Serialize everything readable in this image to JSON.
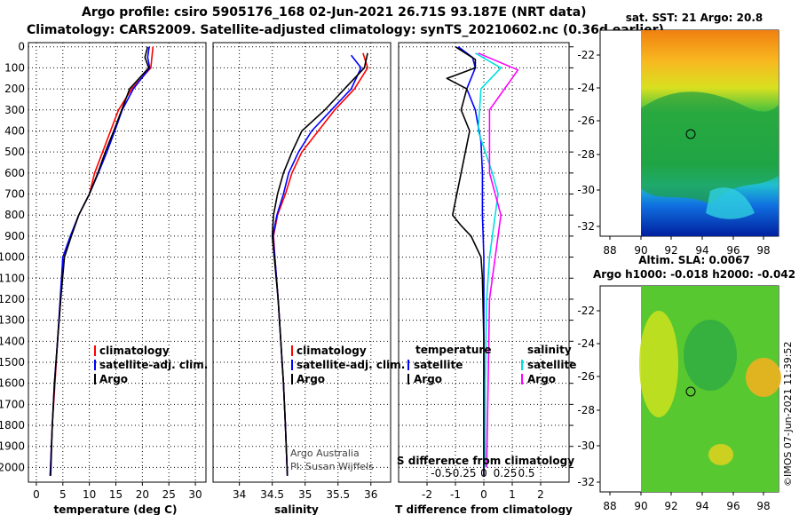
{
  "titles": {
    "line1": "Argo profile: csiro 5905176_168 02-Jun-2021 26.71S 93.187E (NRT data)",
    "line2": "Climatology: CARS2009. Satellite-adjusted climatology: synTS_20210602.nc (0.36d earlier)"
  },
  "colors": {
    "climatology": "#ff0000",
    "satellite": "#0000ff",
    "argo": "#000000",
    "sat_salinity": "#00e0e0",
    "argo_salinity": "#ff00ff"
  },
  "depth_axis": {
    "ticks": [
      0,
      100,
      200,
      300,
      400,
      500,
      600,
      700,
      800,
      900,
      1000,
      1100,
      1200,
      1300,
      1400,
      1500,
      1600,
      1700,
      1800,
      1900,
      2000
    ],
    "range": [
      -20,
      2070
    ]
  },
  "chart_data": [
    {
      "type": "line",
      "name": "temperature-profile",
      "xlabel": "temperature (deg C)",
      "xlim": [
        -1.5,
        32
      ],
      "xticks": [
        0,
        5,
        10,
        15,
        20,
        25,
        30
      ],
      "legend": [
        "climatology",
        "satellite-adj. clim.",
        "Argo"
      ],
      "series": [
        {
          "name": "climatology",
          "color": "#ff0000",
          "points": [
            [
              22,
              0
            ],
            [
              21.8,
              50
            ],
            [
              21.6,
              100
            ],
            [
              18,
              200
            ],
            [
              15.5,
              300
            ],
            [
              14,
              400
            ],
            [
              12.5,
              500
            ],
            [
              11,
              600
            ],
            [
              10,
              700
            ],
            [
              8,
              800
            ],
            [
              6.5,
              900
            ],
            [
              5,
              1000
            ],
            [
              4.6,
              1200
            ],
            [
              4,
              1400
            ],
            [
              3.5,
              1600
            ],
            [
              3,
              1800
            ],
            [
              2.6,
              2040
            ]
          ]
        },
        {
          "name": "satellite-adj. clim.",
          "color": "#0000ff",
          "points": [
            [
              21.3,
              0
            ],
            [
              21,
              50
            ],
            [
              21.4,
              100
            ],
            [
              18.3,
              200
            ],
            [
              16.2,
              300
            ],
            [
              14.8,
              400
            ],
            [
              13.3,
              500
            ],
            [
              11.7,
              600
            ],
            [
              10,
              700
            ],
            [
              8,
              800
            ],
            [
              6.4,
              900
            ],
            [
              5,
              1000
            ],
            [
              4.5,
              1200
            ],
            [
              4,
              1400
            ],
            [
              3.4,
              1600
            ],
            [
              3,
              1800
            ],
            [
              2.6,
              2040
            ]
          ]
        },
        {
          "name": "Argo",
          "color": "#000000",
          "points": [
            [
              21,
              0
            ],
            [
              20.5,
              50
            ],
            [
              21.2,
              100
            ],
            [
              17.6,
              200
            ],
            [
              16.1,
              300
            ],
            [
              14.6,
              400
            ],
            [
              13,
              500
            ],
            [
              11.6,
              600
            ],
            [
              10,
              700
            ],
            [
              8,
              800
            ],
            [
              6.6,
              900
            ],
            [
              5.3,
              1000
            ],
            [
              4.6,
              1200
            ],
            [
              4,
              1400
            ],
            [
              3.4,
              1600
            ],
            [
              3,
              1800
            ],
            [
              2.7,
              2040
            ]
          ]
        }
      ]
    },
    {
      "type": "line",
      "name": "salinity-profile",
      "xlabel": "salinity",
      "xlim": [
        33.6,
        36.3
      ],
      "xticks": [
        34,
        34.5,
        35,
        35.5,
        36
      ],
      "xtick_labels": [
        "34",
        "34.5",
        "35",
        "35.5",
        "36"
      ],
      "legend": [
        "climatology",
        "satellite-adj. clim.",
        "Argo"
      ],
      "annotation": [
        "Argo Australia",
        "PI: Susan Wijffels"
      ],
      "series": [
        {
          "name": "climatology",
          "color": "#ff0000",
          "points": [
            [
              35.88,
              30
            ],
            [
              35.95,
              100
            ],
            [
              35.75,
              200
            ],
            [
              35.45,
              300
            ],
            [
              35.2,
              400
            ],
            [
              34.95,
              500
            ],
            [
              34.8,
              600
            ],
            [
              34.7,
              700
            ],
            [
              34.58,
              800
            ],
            [
              34.52,
              900
            ],
            [
              34.54,
              1000
            ],
            [
              34.59,
              1200
            ],
            [
              34.63,
              1400
            ],
            [
              34.67,
              1600
            ],
            [
              34.7,
              1800
            ],
            [
              34.73,
              2040
            ]
          ]
        },
        {
          "name": "satellite-adj. clim.",
          "color": "#0000ff",
          "points": [
            [
              35.7,
              40
            ],
            [
              35.85,
              100
            ],
            [
              35.7,
              200
            ],
            [
              35.4,
              300
            ],
            [
              35.1,
              400
            ],
            [
              34.9,
              500
            ],
            [
              34.75,
              600
            ],
            [
              34.67,
              700
            ],
            [
              34.57,
              800
            ],
            [
              34.51,
              900
            ],
            [
              34.54,
              1000
            ],
            [
              34.59,
              1200
            ],
            [
              34.63,
              1400
            ],
            [
              34.67,
              1600
            ],
            [
              34.7,
              1800
            ],
            [
              34.73,
              2040
            ]
          ]
        },
        {
          "name": "Argo",
          "color": "#000000",
          "points": [
            [
              35.95,
              30
            ],
            [
              35.9,
              100
            ],
            [
              35.6,
              200
            ],
            [
              35.3,
              300
            ],
            [
              34.95,
              400
            ],
            [
              34.8,
              500
            ],
            [
              34.67,
              600
            ],
            [
              34.58,
              700
            ],
            [
              34.52,
              800
            ],
            [
              34.5,
              900
            ],
            [
              34.53,
              1000
            ],
            [
              34.59,
              1200
            ],
            [
              34.63,
              1400
            ],
            [
              34.67,
              1600
            ],
            [
              34.7,
              1800
            ],
            [
              34.73,
              2040
            ]
          ]
        }
      ]
    },
    {
      "type": "line",
      "name": "difference-profile",
      "xlabel": "T difference from climatology",
      "x2label": "S difference from climatology",
      "xlim": [
        -3,
        3
      ],
      "xticks": [
        -2,
        -1,
        0,
        1,
        2
      ],
      "x2ticks": [
        "-0.5",
        "-0.25",
        "0",
        "0.25",
        "0.5"
      ],
      "legend_left_title": "temperature",
      "legend_right_title": "salinity",
      "legend": [
        "satellite",
        "Argo",
        "satellite",
        "Argo"
      ],
      "series": [
        {
          "name": "T satellite",
          "color": "#0000ff",
          "points": [
            [
              -0.9,
              0
            ],
            [
              -0.4,
              50
            ],
            [
              -0.3,
              100
            ],
            [
              -0.6,
              200
            ],
            [
              -0.3,
              300
            ],
            [
              -0.1,
              450
            ],
            [
              -0.05,
              600
            ],
            [
              -0.05,
              800
            ],
            [
              0,
              1000
            ],
            [
              0,
              1400
            ],
            [
              0,
              2040
            ]
          ]
        },
        {
          "name": "T Argo",
          "color": "#000000",
          "points": [
            [
              -1,
              0
            ],
            [
              -0.3,
              60
            ],
            [
              -0.3,
              100
            ],
            [
              -1.3,
              150
            ],
            [
              -0.6,
              200
            ],
            [
              -0.8,
              300
            ],
            [
              -0.5,
              400
            ],
            [
              -0.8,
              600
            ],
            [
              -1.1,
              800
            ],
            [
              -0.8,
              850
            ],
            [
              -0.45,
              900
            ],
            [
              -0.1,
              1000
            ],
            [
              -0.05,
              1100
            ],
            [
              0,
              1400
            ],
            [
              0,
              2040
            ]
          ]
        },
        {
          "name": "S satellite",
          "color": "#00e0e0",
          "points": [
            [
              -0.3,
              30
            ],
            [
              0.6,
              100
            ],
            [
              -0.1,
              200
            ],
            [
              -0.2,
              400
            ],
            [
              0.3,
              600
            ],
            [
              0.5,
              700
            ],
            [
              0.4,
              800
            ],
            [
              0.2,
              1000
            ],
            [
              0.1,
              1200
            ],
            [
              0.05,
              1600
            ],
            [
              0.05,
              2000
            ]
          ]
        },
        {
          "name": "S Argo",
          "color": "#ff00ff",
          "points": [
            [
              -0.2,
              30
            ],
            [
              1.2,
              110
            ],
            [
              0.2,
              300
            ],
            [
              0.2,
              600
            ],
            [
              0.6,
              800
            ],
            [
              0.4,
              1000
            ],
            [
              0.2,
              1200
            ],
            [
              0.15,
              1600
            ],
            [
              0.1,
              2000
            ]
          ]
        }
      ]
    },
    {
      "type": "heatmap",
      "name": "sst-map",
      "title": "sat. SST: 21 Argo: 20.8",
      "xticks": [
        "88",
        "90",
        "92",
        "94",
        "96",
        "98"
      ],
      "yticks": [
        "-22",
        "-24",
        "-26",
        "-28",
        "-30",
        "-32"
      ],
      "marker": [
        93.187,
        -26.71
      ]
    },
    {
      "type": "heatmap",
      "name": "sla-map",
      "title_line1": "Altim. SLA: 0.0067",
      "title_line2": "Argo h1000: -0.018 h2000: -0.042",
      "xticks": [
        "88",
        "90",
        "92",
        "94",
        "96",
        "98"
      ],
      "yticks": [
        "-22",
        "-24",
        "-26",
        "-28",
        "-30",
        "-32"
      ],
      "marker": [
        93.187,
        -26.71
      ]
    }
  ],
  "credit": "©IMOS 07-Jun-2021 11:39:52"
}
